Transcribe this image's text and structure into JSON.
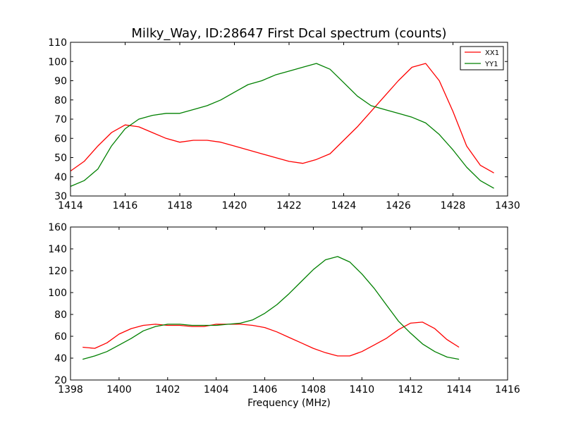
{
  "colors": {
    "XX1": "#ff0000",
    "YY1": "#008000"
  },
  "chart_data": [
    {
      "type": "line",
      "title": "Milky_Way, ID:28647 First Dcal spectrum (counts)",
      "xlabel": "",
      "ylabel": "",
      "xlim": [
        1414,
        1430
      ],
      "ylim": [
        30,
        110
      ],
      "xticks": [
        1414,
        1416,
        1418,
        1420,
        1422,
        1424,
        1426,
        1428,
        1430
      ],
      "yticks": [
        30,
        40,
        50,
        60,
        70,
        80,
        90,
        100,
        110
      ],
      "legend": {
        "position": "top-right",
        "entries": [
          "XX1",
          "YY1"
        ]
      },
      "grid": false,
      "series": [
        {
          "name": "XX1",
          "x": [
            1414.0,
            1414.5,
            1415.0,
            1415.5,
            1416.0,
            1416.5,
            1417.0,
            1417.5,
            1418.0,
            1418.5,
            1419.0,
            1419.5,
            1420.0,
            1420.5,
            1421.0,
            1421.5,
            1422.0,
            1422.5,
            1423.0,
            1423.5,
            1424.0,
            1424.5,
            1425.0,
            1425.5,
            1426.0,
            1426.5,
            1427.0,
            1427.5,
            1428.0,
            1428.5,
            1429.0,
            1429.5
          ],
          "values": [
            43,
            48,
            56,
            63,
            67,
            66,
            63,
            60,
            58,
            59,
            59,
            58,
            56,
            54,
            52,
            50,
            48,
            47,
            49,
            52,
            59,
            66,
            74,
            82,
            90,
            97,
            99,
            90,
            74,
            56,
            46,
            42
          ]
        },
        {
          "name": "YY1",
          "x": [
            1414.0,
            1414.5,
            1415.0,
            1415.5,
            1416.0,
            1416.5,
            1417.0,
            1417.5,
            1418.0,
            1418.5,
            1419.0,
            1419.5,
            1420.0,
            1420.5,
            1421.0,
            1421.5,
            1422.0,
            1422.5,
            1423.0,
            1423.5,
            1424.0,
            1424.5,
            1425.0,
            1425.5,
            1426.0,
            1426.5,
            1427.0,
            1427.5,
            1428.0,
            1428.5,
            1429.0,
            1429.5
          ],
          "values": [
            35,
            38,
            44,
            56,
            65,
            70,
            72,
            73,
            73,
            75,
            77,
            80,
            84,
            88,
            90,
            93,
            95,
            97,
            99,
            96,
            89,
            82,
            77,
            75,
            73,
            71,
            68,
            62,
            54,
            45,
            38,
            34
          ]
        }
      ]
    },
    {
      "type": "line",
      "title": "",
      "xlabel": "Frequency (MHz)",
      "ylabel": "",
      "xlim": [
        1398,
        1416
      ],
      "ylim": [
        20,
        160
      ],
      "xticks": [
        1398,
        1400,
        1402,
        1404,
        1406,
        1408,
        1410,
        1412,
        1414,
        1416
      ],
      "yticks": [
        20,
        40,
        60,
        80,
        100,
        120,
        140,
        160
      ],
      "grid": false,
      "series": [
        {
          "name": "XX1",
          "x": [
            1398.5,
            1399.0,
            1399.5,
            1400.0,
            1400.5,
            1401.0,
            1401.5,
            1402.0,
            1402.5,
            1403.0,
            1403.5,
            1404.0,
            1404.5,
            1405.0,
            1405.5,
            1406.0,
            1406.5,
            1407.0,
            1407.5,
            1408.0,
            1408.5,
            1409.0,
            1409.5,
            1410.0,
            1410.5,
            1411.0,
            1411.5,
            1412.0,
            1412.5,
            1413.0,
            1413.5,
            1414.0
          ],
          "values": [
            50,
            49,
            54,
            62,
            67,
            70,
            71,
            70,
            70,
            69,
            69,
            71,
            71,
            71,
            70,
            68,
            64,
            59,
            54,
            49,
            45,
            42,
            42,
            46,
            52,
            58,
            66,
            72,
            73,
            67,
            57,
            50
          ]
        },
        {
          "name": "YY1",
          "x": [
            1398.5,
            1399.0,
            1399.5,
            1400.0,
            1400.5,
            1401.0,
            1401.5,
            1402.0,
            1402.5,
            1403.0,
            1403.5,
            1404.0,
            1404.5,
            1405.0,
            1405.5,
            1406.0,
            1406.5,
            1407.0,
            1407.5,
            1408.0,
            1408.5,
            1409.0,
            1409.5,
            1410.0,
            1410.5,
            1411.0,
            1411.5,
            1412.0,
            1412.5,
            1413.0,
            1413.5,
            1414.0
          ],
          "values": [
            39,
            42,
            46,
            52,
            58,
            65,
            69,
            71,
            71,
            70,
            70,
            70,
            71,
            72,
            75,
            81,
            89,
            99,
            110,
            121,
            130,
            133,
            128,
            117,
            104,
            89,
            74,
            63,
            53,
            46,
            41,
            39
          ]
        }
      ]
    }
  ]
}
